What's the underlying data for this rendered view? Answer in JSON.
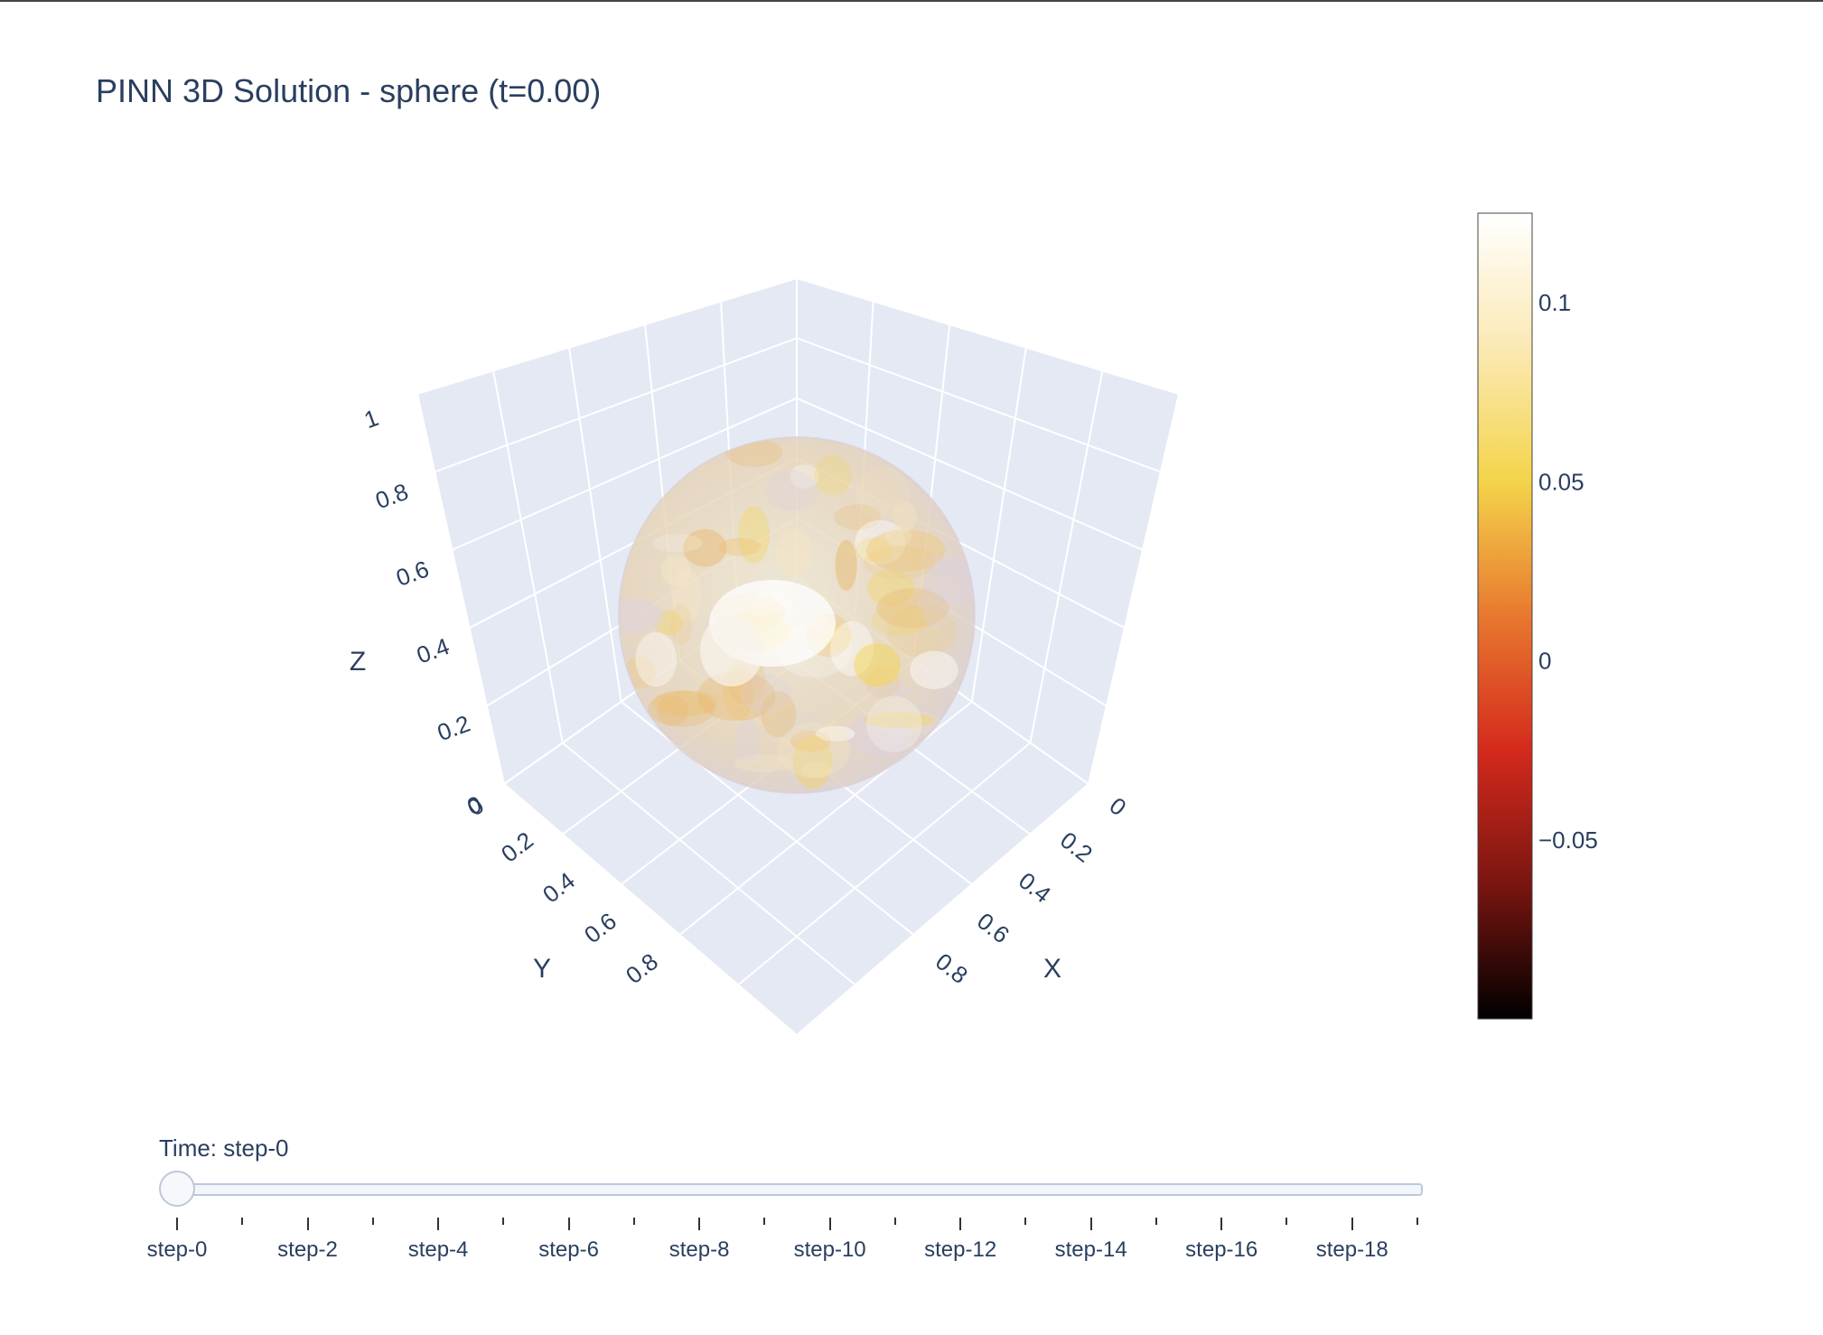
{
  "chart_data": {
    "type": "volume",
    "title": "PINN 3D Solution - sphere (t=0.00)",
    "shape": "sphere",
    "axes": {
      "x": {
        "title": "X",
        "range": [
          0,
          1
        ],
        "ticks": [
          "0",
          "0.2",
          "0.4",
          "0.6",
          "0.8"
        ]
      },
      "y": {
        "title": "Y",
        "range": [
          0,
          1
        ],
        "ticks": [
          "0",
          "0.2",
          "0.4",
          "0.6",
          "0.8"
        ]
      },
      "z": {
        "title": "Z",
        "range": [
          0,
          1
        ],
        "ticks": [
          "0",
          "0.2",
          "0.4",
          "0.6",
          "0.8",
          "1"
        ]
      }
    },
    "grid": true,
    "colorbar": {
      "colorscale": "Hot",
      "range": [
        -0.1,
        0.125
      ],
      "ticks": [
        {
          "value": 0.1,
          "label": "0.1"
        },
        {
          "value": 0.05,
          "label": "0.05"
        },
        {
          "value": 0,
          "label": "0"
        },
        {
          "value": -0.05,
          "label": "−0.05"
        }
      ],
      "colors": [
        "#000000",
        "#7a1510",
        "#d42a1c",
        "#e8782f",
        "#f4d44a",
        "#fbe9b4",
        "#ffffff"
      ]
    }
  },
  "slider": {
    "prefix": "Time: step-0",
    "active_step": 0,
    "step_count": 20,
    "labels": [
      "step-0",
      "step-2",
      "step-4",
      "step-6",
      "step-8",
      "step-10",
      "step-12",
      "step-14",
      "step-16",
      "step-18"
    ]
  }
}
